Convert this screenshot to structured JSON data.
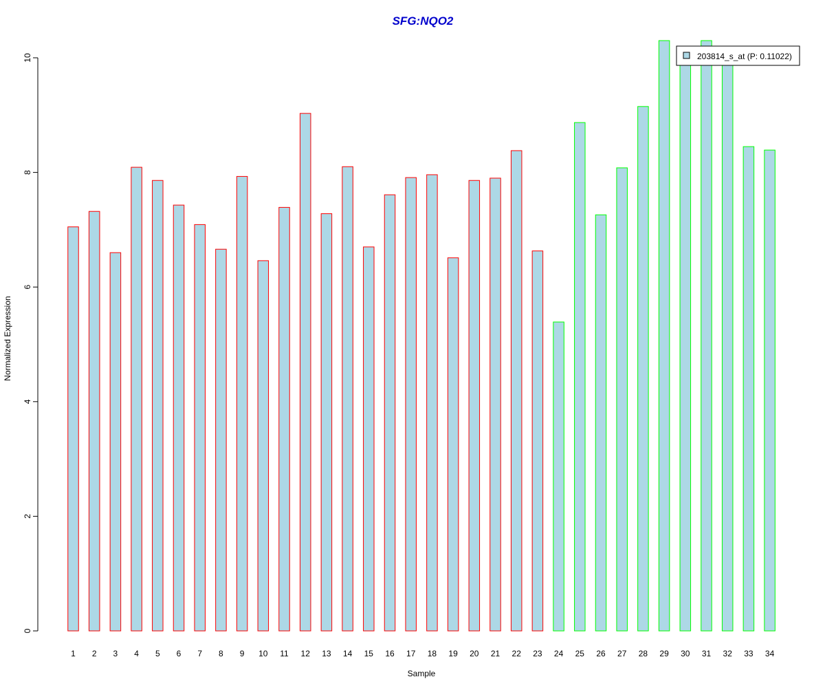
{
  "chart_data": {
    "type": "bar",
    "title": "SFG:NQO2",
    "xlabel": "Sample",
    "ylabel": "Normalized Expression",
    "ylim": [
      0,
      10
    ],
    "yticks": [
      0,
      2,
      4,
      6,
      8,
      10
    ],
    "categories": [
      "1",
      "2",
      "3",
      "4",
      "5",
      "6",
      "7",
      "8",
      "9",
      "10",
      "11",
      "12",
      "13",
      "14",
      "15",
      "16",
      "17",
      "18",
      "19",
      "20",
      "21",
      "22",
      "23",
      "24",
      "25",
      "26",
      "27",
      "28",
      "29",
      "30",
      "31",
      "32",
      "33",
      "34"
    ],
    "series": [
      {
        "name": "203814_s_at (P: 0.11022)",
        "values": [
          7.05,
          7.32,
          6.6,
          8.09,
          7.86,
          7.43,
          7.09,
          6.66,
          7.93,
          6.46,
          7.39,
          9.03,
          7.28,
          8.1,
          6.7,
          7.61,
          7.91,
          7.96,
          6.51,
          7.86,
          7.9,
          8.38,
          6.63,
          5.39,
          8.87,
          7.26,
          8.08,
          9.15,
          10.3,
          9.97,
          10.3,
          9.92,
          8.45,
          8.39
        ]
      }
    ],
    "group_outline": [
      "red",
      "red",
      "red",
      "red",
      "red",
      "red",
      "red",
      "red",
      "red",
      "red",
      "red",
      "red",
      "red",
      "red",
      "red",
      "red",
      "red",
      "red",
      "red",
      "red",
      "red",
      "red",
      "red",
      "green",
      "green",
      "green",
      "green",
      "green",
      "green",
      "green",
      "green",
      "green",
      "green",
      "green"
    ],
    "legend_position": "top-right",
    "grid": false
  },
  "colors": {
    "bar_fill": "#add8e6",
    "outline_red": "#ff0000",
    "outline_green": "#00ff00",
    "title": "#0000cc",
    "axis": "#000000"
  }
}
